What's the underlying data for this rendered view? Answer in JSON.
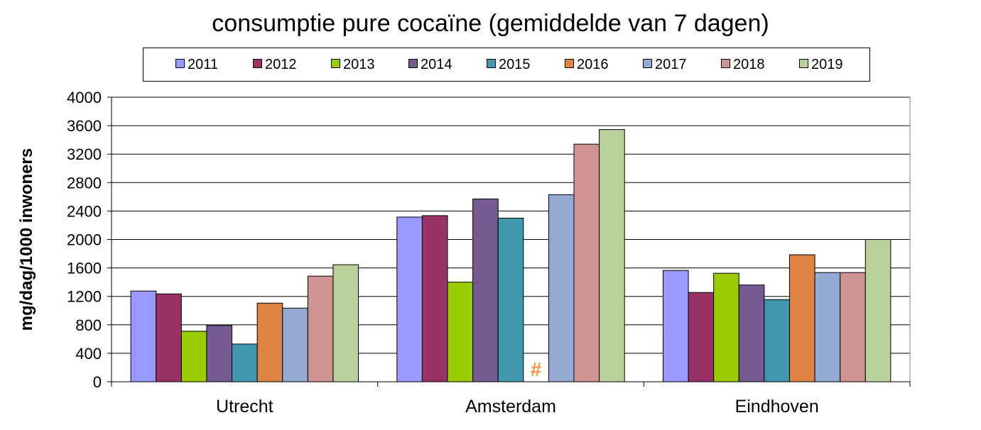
{
  "chart_data": {
    "type": "bar",
    "title": "consumptie pure cocaïne (gemiddelde van 7 dagen)",
    "xlabel": "",
    "ylabel": "mg/dag/1000 inwoners",
    "ylim": [
      0,
      4000
    ],
    "yticks": [
      0,
      400,
      800,
      1200,
      1600,
      2000,
      2400,
      2800,
      3200,
      3600,
      4000
    ],
    "grid": true,
    "legend": "top",
    "categories": [
      "Utrecht",
      "Amsterdam",
      "Eindhoven"
    ],
    "series": [
      {
        "name": "2011",
        "color": "#9999ff",
        "values": [
          1275,
          2315,
          1565
        ]
      },
      {
        "name": "2012",
        "color": "#993366",
        "values": [
          1235,
          2335,
          1255
        ]
      },
      {
        "name": "2013",
        "color": "#99cc00",
        "values": [
          710,
          1400,
          1525
        ]
      },
      {
        "name": "2014",
        "color": "#765a92",
        "values": [
          790,
          2570,
          1360
        ]
      },
      {
        "name": "2015",
        "color": "#4197ae",
        "values": [
          530,
          2300,
          1155
        ]
      },
      {
        "name": "2016",
        "color": "#dd8444",
        "values": [
          1105,
          null,
          1785
        ]
      },
      {
        "name": "2017",
        "color": "#95aad2",
        "values": [
          1035,
          2630,
          1535
        ]
      },
      {
        "name": "2018",
        "color": "#d09393",
        "values": [
          1485,
          3340,
          1535
        ]
      },
      {
        "name": "2019",
        "color": "#b8d09a",
        "values": [
          1645,
          3545,
          2000
        ]
      }
    ],
    "annotations": [
      {
        "text": "#",
        "category": "Amsterdam",
        "series": "2016",
        "color": "#f79646"
      }
    ]
  }
}
